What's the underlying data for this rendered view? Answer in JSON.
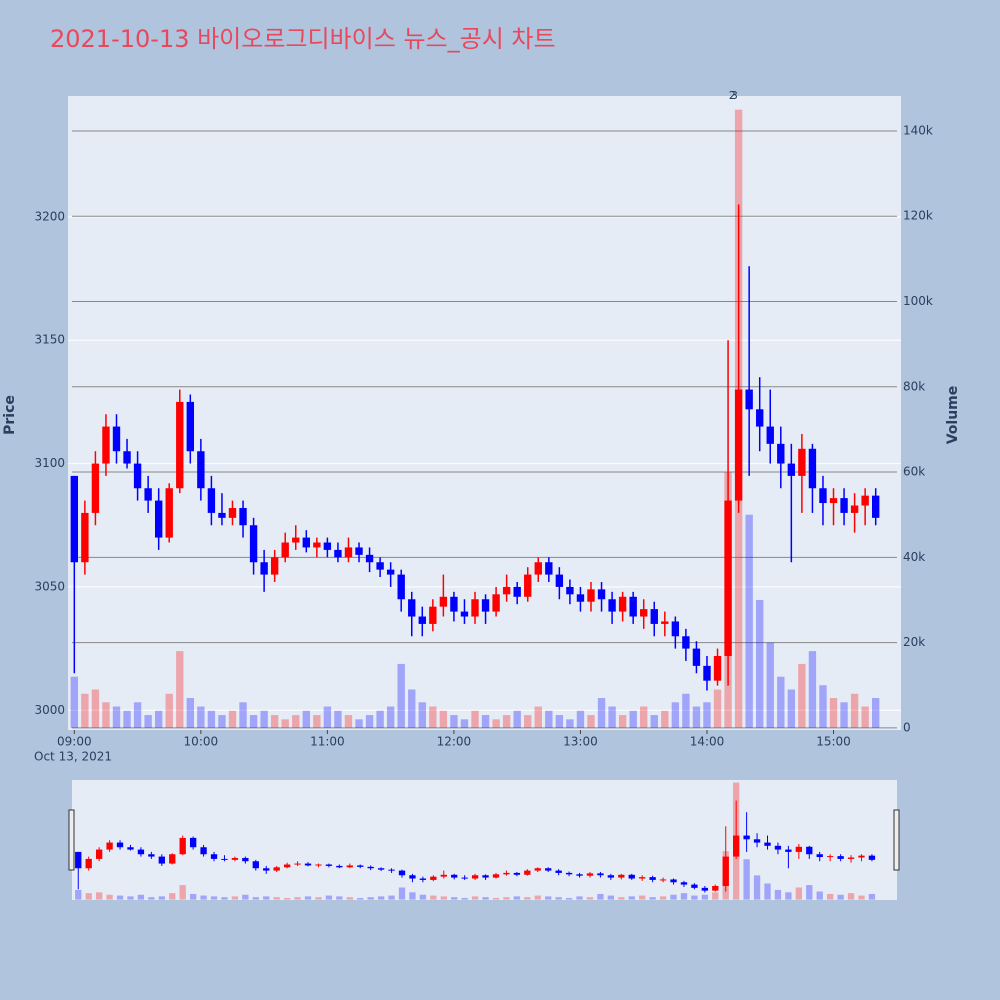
{
  "chart_data": {
    "type": "candlestick",
    "title": "2021-10-13 바이오로그디바이스 뉴스_공시 차트",
    "y_label": "Price",
    "y2_label": "Volume",
    "date_label": "Oct 13, 2021",
    "increasing_color": "#ff0000",
    "decreasing_color": "#0000ff",
    "x": [
      "09:00",
      "09:05",
      "09:10",
      "09:15",
      "09:20",
      "09:25",
      "09:30",
      "09:35",
      "09:40",
      "09:45",
      "09:50",
      "09:55",
      "10:00",
      "10:05",
      "10:10",
      "10:15",
      "10:20",
      "10:25",
      "10:30",
      "10:35",
      "10:40",
      "10:45",
      "10:50",
      "10:55",
      "11:00",
      "11:05",
      "11:10",
      "11:15",
      "11:20",
      "11:25",
      "11:30",
      "11:35",
      "11:40",
      "11:45",
      "11:50",
      "11:55",
      "12:00",
      "12:05",
      "12:10",
      "12:15",
      "12:20",
      "12:25",
      "12:30",
      "12:35",
      "12:40",
      "12:45",
      "12:50",
      "12:55",
      "13:00",
      "13:05",
      "13:10",
      "13:15",
      "13:20",
      "13:25",
      "13:30",
      "13:35",
      "13:40",
      "13:45",
      "13:50",
      "13:55",
      "14:00",
      "14:05",
      "14:10",
      "14:15",
      "14:20",
      "14:25",
      "14:30",
      "14:35",
      "14:40",
      "14:45",
      "14:50",
      "14:55",
      "15:00",
      "15:05",
      "15:10",
      "15:15",
      "15:20"
    ],
    "open": [
      3095,
      3060,
      3080,
      3100,
      3115,
      3105,
      3100,
      3090,
      3085,
      3070,
      3090,
      3125,
      3105,
      3090,
      3080,
      3078,
      3082,
      3075,
      3060,
      3055,
      3062,
      3068,
      3070,
      3066,
      3068,
      3065,
      3062,
      3066,
      3063,
      3060,
      3057,
      3055,
      3045,
      3038,
      3035,
      3042,
      3046,
      3040,
      3038,
      3045,
      3040,
      3047,
      3050,
      3046,
      3055,
      3060,
      3055,
      3050,
      3047,
      3044,
      3049,
      3045,
      3040,
      3046,
      3038,
      3041,
      3035,
      3036,
      3030,
      3025,
      3018,
      3012,
      3022,
      3085,
      3130,
      3122,
      3115,
      3108,
      3100,
      3095,
      3106,
      3090,
      3084,
      3086,
      3080,
      3083,
      3087
    ],
    "high": [
      3095,
      3085,
      3105,
      3120,
      3120,
      3110,
      3105,
      3095,
      3090,
      3092,
      3130,
      3128,
      3110,
      3095,
      3088,
      3085,
      3085,
      3078,
      3065,
      3065,
      3072,
      3075,
      3073,
      3070,
      3070,
      3068,
      3070,
      3068,
      3066,
      3062,
      3060,
      3057,
      3048,
      3042,
      3045,
      3055,
      3048,
      3045,
      3048,
      3047,
      3050,
      3055,
      3052,
      3058,
      3062,
      3062,
      3058,
      3053,
      3050,
      3052,
      3052,
      3048,
      3048,
      3048,
      3045,
      3044,
      3040,
      3038,
      3033,
      3028,
      3022,
      3025,
      3150,
      3205,
      3180,
      3135,
      3130,
      3115,
      3108,
      3112,
      3108,
      3095,
      3090,
      3090,
      3088,
      3090,
      3090
    ],
    "low": [
      3015,
      3055,
      3075,
      3095,
      3100,
      3098,
      3085,
      3080,
      3065,
      3068,
      3088,
      3100,
      3085,
      3075,
      3075,
      3075,
      3070,
      3055,
      3048,
      3052,
      3060,
      3065,
      3064,
      3062,
      3062,
      3060,
      3060,
      3060,
      3056,
      3054,
      3050,
      3040,
      3030,
      3030,
      3032,
      3038,
      3036,
      3035,
      3035,
      3035,
      3038,
      3044,
      3043,
      3044,
      3052,
      3052,
      3045,
      3043,
      3040,
      3040,
      3040,
      3035,
      3036,
      3035,
      3033,
      3030,
      3030,
      3025,
      3020,
      3015,
      3008,
      3010,
      3010,
      3080,
      3095,
      3105,
      3100,
      3090,
      3060,
      3080,
      3080,
      3075,
      3075,
      3075,
      3072,
      3075,
      3075
    ],
    "close": [
      3060,
      3080,
      3100,
      3115,
      3105,
      3100,
      3090,
      3085,
      3070,
      3090,
      3125,
      3105,
      3090,
      3080,
      3078,
      3082,
      3075,
      3060,
      3055,
      3062,
      3068,
      3070,
      3066,
      3068,
      3065,
      3062,
      3066,
      3063,
      3060,
      3057,
      3055,
      3045,
      3038,
      3035,
      3042,
      3046,
      3040,
      3038,
      3045,
      3040,
      3047,
      3050,
      3046,
      3055,
      3060,
      3055,
      3050,
      3047,
      3044,
      3049,
      3045,
      3040,
      3046,
      3038,
      3041,
      3035,
      3036,
      3030,
      3025,
      3018,
      3012,
      3022,
      3085,
      3130,
      3122,
      3115,
      3108,
      3100,
      3095,
      3106,
      3090,
      3084,
      3086,
      3080,
      3083,
      3087,
      3078
    ],
    "volume": [
      12000,
      8000,
      9000,
      6000,
      5000,
      4000,
      6000,
      3000,
      4000,
      8000,
      18000,
      7000,
      5000,
      4000,
      3000,
      4000,
      6000,
      3000,
      4000,
      3000,
      2000,
      3000,
      4000,
      3000,
      5000,
      4000,
      3000,
      2000,
      3000,
      4000,
      5000,
      15000,
      9000,
      6000,
      5000,
      4000,
      3000,
      2000,
      4000,
      3000,
      2000,
      3000,
      4000,
      3000,
      5000,
      4000,
      3000,
      2000,
      4000,
      3000,
      7000,
      5000,
      3000,
      4000,
      5000,
      3000,
      4000,
      6000,
      8000,
      5000,
      6000,
      9000,
      60000,
      145000,
      50000,
      30000,
      20000,
      12000,
      9000,
      15000,
      18000,
      10000,
      7000,
      6000,
      8000,
      5000,
      7000
    ],
    "annotations": [
      {
        "x": "14:12",
        "text": "2"
      },
      {
        "x": "14:13",
        "text": "3"
      }
    ],
    "xlim": [
      "08:57",
      "15:32"
    ],
    "xticks": [
      "09:00",
      "10:00",
      "11:00",
      "12:00",
      "13:00",
      "14:00",
      "15:00"
    ],
    "ylim": [
      2992,
      3249
    ],
    "yticks": [
      3000,
      3050,
      3100,
      3150,
      3200
    ],
    "y2lim": [
      -500,
      148200
    ],
    "y2ticks": [
      0,
      {
        "value": 20000,
        "label": "20k"
      },
      {
        "value": 40000,
        "label": "40k"
      },
      {
        "value": 60000,
        "label": "60k"
      },
      {
        "value": 80000,
        "label": "80k"
      },
      {
        "value": 100000,
        "label": "100k"
      },
      {
        "value": 120000,
        "label": "120k"
      },
      {
        "value": 140000,
        "label": "140k"
      }
    ],
    "grid": true
  }
}
